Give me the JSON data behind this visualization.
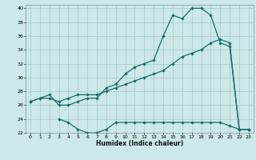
{
  "title": "",
  "xlabel": "Humidex (Indice chaleur)",
  "bg_color": "#cce8e8",
  "grid_color": "#aacece",
  "line_color": "#1a6b6b",
  "xlim": [
    -0.5,
    23.5
  ],
  "ylim": [
    22,
    40.5
  ],
  "xticks": [
    0,
    1,
    2,
    3,
    4,
    5,
    6,
    7,
    8,
    9,
    10,
    11,
    12,
    13,
    14,
    15,
    16,
    17,
    18,
    19,
    20,
    21,
    22,
    23
  ],
  "yticks": [
    22,
    24,
    26,
    28,
    30,
    32,
    34,
    36,
    38,
    40
  ],
  "curve1_x": [
    0,
    1,
    2,
    3,
    4,
    5,
    6,
    7,
    8,
    9,
    10,
    11,
    12,
    13,
    14,
    15,
    16,
    17,
    18,
    19,
    20,
    21,
    22,
    23
  ],
  "curve1_y": [
    26.5,
    27.0,
    27.5,
    26.0,
    26.0,
    26.5,
    27.0,
    27.0,
    28.5,
    29.0,
    30.5,
    31.5,
    32.0,
    32.5,
    36.0,
    39.0,
    38.5,
    40.0,
    40.0,
    39.0,
    35.0,
    34.5,
    22.5,
    22.5
  ],
  "curve2_x": [
    0,
    1,
    2,
    3,
    4,
    5,
    6,
    7,
    8,
    9,
    10,
    11,
    12,
    13,
    14,
    15,
    16,
    17,
    18,
    19,
    20,
    21,
    22,
    23
  ],
  "curve2_y": [
    26.5,
    27.0,
    27.0,
    26.5,
    27.0,
    27.5,
    27.5,
    27.5,
    28.0,
    28.5,
    29.0,
    29.5,
    30.0,
    30.5,
    31.0,
    32.0,
    33.0,
    33.5,
    34.0,
    35.0,
    35.5,
    35.0,
    22.5,
    22.5
  ],
  "curve3_x": [
    3,
    4,
    5,
    6,
    7,
    8,
    9,
    10,
    11,
    12,
    13,
    14,
    15,
    16,
    17,
    18,
    19,
    20,
    21,
    22,
    23
  ],
  "curve3_y": [
    24.0,
    23.5,
    22.5,
    22.0,
    22.0,
    22.5,
    23.5,
    23.5,
    23.5,
    23.5,
    23.5,
    23.5,
    23.5,
    23.5,
    23.5,
    23.5,
    23.5,
    23.5,
    23.0,
    22.5,
    22.5
  ],
  "markersize": 2.2,
  "linewidth": 0.9,
  "tick_fontsize": 4.5,
  "xlabel_fontsize": 5.5
}
